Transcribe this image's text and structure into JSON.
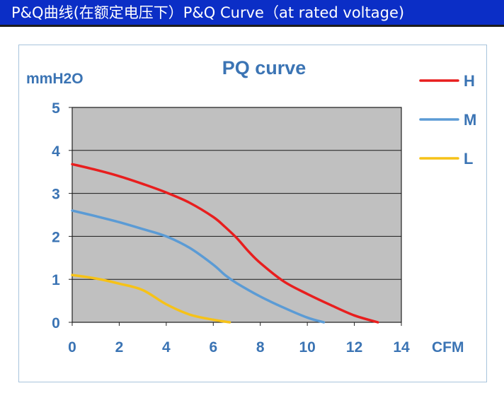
{
  "header": {
    "title": "P&Q曲线(在额定电压下）P&Q Curve（at rated voltage)"
  },
  "colors": {
    "banner": "#0b2ec6",
    "plot_background": "#c0c0c0",
    "text": "#3b74b4"
  },
  "chart_data": {
    "type": "line",
    "title": "PQ curve",
    "xlabel": "CFM",
    "ylabel": "mmH2O",
    "xlim": [
      0,
      14
    ],
    "ylim": [
      0,
      5
    ],
    "xticks": [
      "0",
      "2",
      "4",
      "6",
      "8",
      "10",
      "12",
      "14"
    ],
    "yticks": [
      "0",
      "1",
      "2",
      "3",
      "4",
      "5"
    ],
    "grid": "horizontal",
    "legend_position": "right",
    "series": [
      {
        "name": "H",
        "color": "#e81e1e",
        "x": [
          0,
          1,
          2,
          3,
          4,
          5,
          6,
          6.5,
          7,
          7.5,
          8,
          9,
          10,
          11,
          12,
          13
        ],
        "y": [
          3.68,
          3.55,
          3.4,
          3.22,
          3.02,
          2.78,
          2.45,
          2.22,
          1.96,
          1.65,
          1.38,
          0.95,
          0.66,
          0.4,
          0.16,
          0
        ]
      },
      {
        "name": "M",
        "color": "#5b9bd5",
        "x": [
          0,
          1,
          2,
          3,
          4,
          5,
          6,
          6.5,
          7,
          8,
          9,
          10,
          10.7
        ],
        "y": [
          2.6,
          2.47,
          2.33,
          2.17,
          2.0,
          1.73,
          1.34,
          1.1,
          0.91,
          0.6,
          0.34,
          0.11,
          0
        ]
      },
      {
        "name": "L",
        "color": "#f6c218",
        "x": [
          0,
          1,
          2,
          3,
          4,
          5,
          6,
          6.7
        ],
        "y": [
          1.1,
          1.02,
          0.9,
          0.75,
          0.42,
          0.18,
          0.06,
          0
        ]
      }
    ]
  }
}
